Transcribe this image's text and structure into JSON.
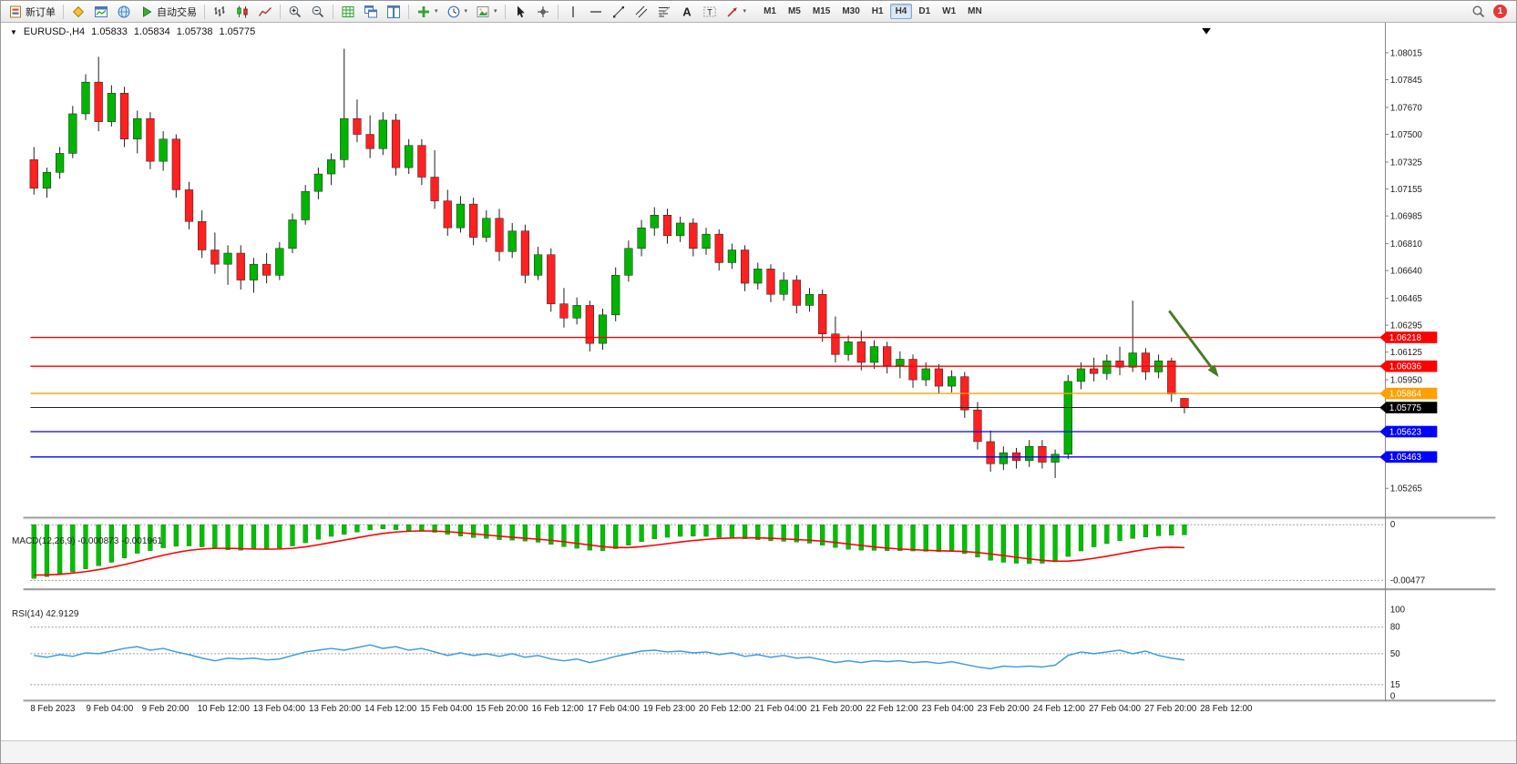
{
  "toolbar": {
    "new_order_label": "新订单",
    "autotrading_label": "自动交易",
    "timeframes": [
      "M1",
      "M5",
      "M15",
      "M30",
      "H1",
      "H4",
      "D1",
      "W1",
      "MN"
    ],
    "active_timeframe": "H4",
    "notification_badge": "1"
  },
  "chart": {
    "header": {
      "symbol_period": "EURUSD-,H4",
      "open": "1.05833",
      "high": "1.05834",
      "low": "1.05738",
      "close": "1.05775"
    },
    "price_axis_labels": [
      "1.08015",
      "1.07845",
      "1.07670",
      "1.07500",
      "1.07325",
      "1.07155",
      "1.06985",
      "1.06810",
      "1.06640",
      "1.06465",
      "1.06295",
      "1.06125",
      "1.05950",
      "1.05265"
    ],
    "hlines": [
      {
        "price": 1.06218,
        "label": "1.06218",
        "color": "#ff0000"
      },
      {
        "price": 1.06036,
        "label": "1.06036",
        "color": "#ff0000"
      },
      {
        "price": 1.05864,
        "label": "1.05864",
        "color": "#ffa000"
      },
      {
        "price": 1.05775,
        "label": "1.05775",
        "color": "#000000"
      },
      {
        "price": 1.05623,
        "label": "1.05623",
        "color": "#0000ff"
      },
      {
        "price": 1.05463,
        "label": "1.05463",
        "color": "#0000ff"
      }
    ],
    "annotation_arrow": {
      "color": "#4a7a28"
    },
    "time_axis_labels": [
      "8 Feb 2023",
      "9 Feb 04:00",
      "9 Feb 20:00",
      "10 Feb 12:00",
      "13 Feb 04:00",
      "13 Feb 20:00",
      "14 Feb 12:00",
      "15 Feb 04:00",
      "15 Feb 20:00",
      "16 Feb 12:00",
      "17 Feb 04:00",
      "19 Feb 23:00",
      "20 Feb 12:00",
      "21 Feb 04:00",
      "21 Feb 20:00",
      "22 Feb 12:00",
      "23 Feb 04:00",
      "23 Feb 20:00",
      "24 Feb 12:00",
      "27 Feb 04:00",
      "27 Feb 20:00",
      "28 Feb 12:00"
    ]
  },
  "chart_data": {
    "type": "candlestick",
    "symbol": "EURUSD-",
    "timeframe": "H4",
    "up_color": "#00b400",
    "down_color": "#ff2020",
    "candles": [
      [
        1.0734,
        1.0742,
        1.0712,
        1.0716
      ],
      [
        1.0716,
        1.0729,
        1.071,
        1.0726
      ],
      [
        1.0726,
        1.0742,
        1.0722,
        1.0738
      ],
      [
        1.0738,
        1.0768,
        1.0735,
        1.0763
      ],
      [
        1.0763,
        1.0788,
        1.0759,
        1.0783
      ],
      [
        1.0783,
        1.0799,
        1.0752,
        1.0758
      ],
      [
        1.0758,
        1.0781,
        1.0755,
        1.0776
      ],
      [
        1.0776,
        1.078,
        1.0742,
        1.0747
      ],
      [
        1.0747,
        1.0765,
        1.0738,
        1.076
      ],
      [
        1.076,
        1.0764,
        1.0728,
        1.0733
      ],
      [
        1.0733,
        1.0752,
        1.0727,
        1.0747
      ],
      [
        1.0747,
        1.075,
        1.071,
        1.0715
      ],
      [
        1.0715,
        1.072,
        1.069,
        1.0695
      ],
      [
        1.0695,
        1.0702,
        1.0672,
        1.0677
      ],
      [
        1.0677,
        1.0688,
        1.0662,
        1.0668
      ],
      [
        1.0668,
        1.068,
        1.0655,
        1.0675
      ],
      [
        1.0675,
        1.068,
        1.0652,
        1.0658
      ],
      [
        1.0658,
        1.0672,
        1.065,
        1.0668
      ],
      [
        1.0668,
        1.0675,
        1.0656,
        1.0661
      ],
      [
        1.0661,
        1.0682,
        1.0658,
        1.0678
      ],
      [
        1.0678,
        1.07,
        1.0675,
        1.0696
      ],
      [
        1.0696,
        1.0718,
        1.0693,
        1.0714
      ],
      [
        1.0714,
        1.0729,
        1.0709,
        1.0725
      ],
      [
        1.0725,
        1.0738,
        1.0718,
        1.0734
      ],
      [
        1.0734,
        1.0804,
        1.0729,
        1.076
      ],
      [
        1.076,
        1.0772,
        1.0745,
        1.075
      ],
      [
        1.075,
        1.0762,
        1.0735,
        1.0741
      ],
      [
        1.0741,
        1.0764,
        1.0737,
        1.0759
      ],
      [
        1.0759,
        1.0763,
        1.0724,
        1.0729
      ],
      [
        1.0729,
        1.0747,
        1.0725,
        1.0743
      ],
      [
        1.0743,
        1.0747,
        1.0718,
        1.0723
      ],
      [
        1.0723,
        1.074,
        1.0703,
        1.0708
      ],
      [
        1.0708,
        1.0715,
        1.0686,
        1.0691
      ],
      [
        1.0691,
        1.0711,
        1.0688,
        1.0706
      ],
      [
        1.0706,
        1.071,
        1.068,
        1.0685
      ],
      [
        1.0685,
        1.0702,
        1.0682,
        1.0697
      ],
      [
        1.0697,
        1.0703,
        1.067,
        1.0676
      ],
      [
        1.0676,
        1.0694,
        1.0672,
        1.0689
      ],
      [
        1.0689,
        1.0693,
        1.0656,
        1.0661
      ],
      [
        1.0661,
        1.0679,
        1.0658,
        1.0674
      ],
      [
        1.0674,
        1.0678,
        1.0638,
        1.0643
      ],
      [
        1.0643,
        1.0653,
        1.0628,
        1.0634
      ],
      [
        1.0634,
        1.0647,
        1.063,
        1.0642
      ],
      [
        1.0642,
        1.0645,
        1.0613,
        1.0618
      ],
      [
        1.0618,
        1.064,
        1.0614,
        1.0636
      ],
      [
        1.0636,
        1.0666,
        1.0632,
        1.0661
      ],
      [
        1.0661,
        1.0683,
        1.0657,
        1.0678
      ],
      [
        1.0678,
        1.0696,
        1.0673,
        1.0691
      ],
      [
        1.0691,
        1.0704,
        1.0686,
        1.0699
      ],
      [
        1.0699,
        1.0703,
        1.0681,
        1.0686
      ],
      [
        1.0686,
        1.0698,
        1.0682,
        1.0694
      ],
      [
        1.0694,
        1.0697,
        1.0673,
        1.0678
      ],
      [
        1.0678,
        1.0691,
        1.0674,
        1.0687
      ],
      [
        1.0687,
        1.069,
        1.0664,
        1.0669
      ],
      [
        1.0669,
        1.0681,
        1.0665,
        1.0677
      ],
      [
        1.0677,
        1.068,
        1.0651,
        1.0656
      ],
      [
        1.0656,
        1.0669,
        1.0652,
        1.0665
      ],
      [
        1.0665,
        1.0668,
        1.0644,
        1.0649
      ],
      [
        1.0649,
        1.0663,
        1.0645,
        1.0658
      ],
      [
        1.0658,
        1.0661,
        1.0637,
        1.0642
      ],
      [
        1.0642,
        1.0653,
        1.0638,
        1.0649
      ],
      [
        1.0649,
        1.0652,
        1.0619,
        1.0624
      ],
      [
        1.0624,
        1.0635,
        1.0606,
        1.0611
      ],
      [
        1.0611,
        1.0623,
        1.0607,
        1.0619
      ],
      [
        1.0619,
        1.0626,
        1.0601,
        1.0606
      ],
      [
        1.0606,
        1.062,
        1.0602,
        1.0616
      ],
      [
        1.0616,
        1.0619,
        1.0599,
        1.0604
      ],
      [
        1.0604,
        1.0613,
        1.0596,
        1.0608
      ],
      [
        1.0608,
        1.0611,
        1.059,
        1.0595
      ],
      [
        1.0595,
        1.0606,
        1.0591,
        1.0602
      ],
      [
        1.0602,
        1.0605,
        1.0586,
        1.0591
      ],
      [
        1.0591,
        1.0601,
        1.0587,
        1.0597
      ],
      [
        1.0597,
        1.06,
        1.0571,
        1.0576
      ],
      [
        1.0576,
        1.0581,
        1.0551,
        1.0556
      ],
      [
        1.0556,
        1.0563,
        1.0537,
        1.0542
      ],
      [
        1.0542,
        1.0553,
        1.0538,
        1.0549
      ],
      [
        1.0549,
        1.0552,
        1.0539,
        1.0544
      ],
      [
        1.0544,
        1.0557,
        1.054,
        1.0553
      ],
      [
        1.0553,
        1.0557,
        1.0539,
        1.0543
      ],
      [
        1.0543,
        1.0551,
        1.0533,
        1.0548
      ],
      [
        1.0548,
        1.0598,
        1.0545,
        1.0594
      ],
      [
        1.0594,
        1.0606,
        1.0589,
        1.0602
      ],
      [
        1.0602,
        1.0609,
        1.0594,
        1.0599
      ],
      [
        1.0599,
        1.0611,
        1.0595,
        1.0607
      ],
      [
        1.0607,
        1.0616,
        1.0598,
        1.0603
      ],
      [
        1.0603,
        1.0645,
        1.06,
        1.0612
      ],
      [
        1.0612,
        1.0615,
        1.0595,
        1.06
      ],
      [
        1.06,
        1.0611,
        1.0596,
        1.0607
      ],
      [
        1.0607,
        1.0609,
        1.0581,
        1.0586
      ],
      [
        1.05833,
        1.05834,
        1.05738,
        1.05775
      ]
    ],
    "indicators": {
      "macd": {
        "name": "MACD(12,26,9)",
        "values_text": "-0.000873 -0.001961",
        "axis_labels": [
          "0",
          "-0.00477"
        ],
        "histogram_color": "#00c000",
        "signal_color": "#ff0000",
        "histogram": [
          -0.0046,
          -0.00445,
          -0.00428,
          -0.00405,
          -0.00378,
          -0.00352,
          -0.00322,
          -0.00285,
          -0.00245,
          -0.00222,
          -0.00198,
          -0.00185,
          -0.00182,
          -0.0019,
          -0.00205,
          -0.00215,
          -0.00218,
          -0.00212,
          -0.00208,
          -0.002,
          -0.00182,
          -0.00155,
          -0.00125,
          -0.001,
          -0.00082,
          -0.00063,
          -0.00045,
          -0.00035,
          -0.00042,
          -0.00052,
          -0.00055,
          -0.00065,
          -0.00082,
          -0.00098,
          -0.0011,
          -0.00118,
          -0.00128,
          -0.00132,
          -0.0014,
          -0.0015,
          -0.00168,
          -0.00188,
          -0.00202,
          -0.00218,
          -0.00222,
          -0.00205,
          -0.00175,
          -0.00145,
          -0.00122,
          -0.00108,
          -0.001,
          -0.00098,
          -0.001,
          -0.00108,
          -0.00112,
          -0.0012,
          -0.00128,
          -0.00138,
          -0.00142,
          -0.00148,
          -0.00158,
          -0.00175,
          -0.00195,
          -0.0021,
          -0.00218,
          -0.0022,
          -0.00222,
          -0.00222,
          -0.00225,
          -0.00228,
          -0.0023,
          -0.00228,
          -0.00248,
          -0.00278,
          -0.00305,
          -0.00322,
          -0.0033,
          -0.00332,
          -0.0033,
          -0.00318,
          -0.00272,
          -0.00225,
          -0.0019,
          -0.00162,
          -0.00138,
          -0.00118,
          -0.00105,
          -0.00095,
          -0.0009,
          -0.000873
        ],
        "signal": [
          -0.00432,
          -0.0043,
          -0.00425,
          -0.00415,
          -0.00402,
          -0.00385,
          -0.00365,
          -0.00342,
          -0.00315,
          -0.00288,
          -0.00262,
          -0.00238,
          -0.0022,
          -0.00208,
          -0.00202,
          -0.00202,
          -0.00205,
          -0.00208,
          -0.0021,
          -0.00208,
          -0.00202,
          -0.0019,
          -0.00172,
          -0.00152,
          -0.00132,
          -0.00112,
          -0.00092,
          -0.00075,
          -0.00063,
          -0.00056,
          -0.00053,
          -0.00055,
          -0.0006,
          -0.00068,
          -0.00078,
          -0.00088,
          -0.00098,
          -0.00108,
          -0.00116,
          -0.00124,
          -0.00134,
          -0.00146,
          -0.0016,
          -0.00174,
          -0.00188,
          -0.00196,
          -0.00196,
          -0.00188,
          -0.00176,
          -0.00162,
          -0.00148,
          -0.00136,
          -0.00126,
          -0.00118,
          -0.00114,
          -0.00112,
          -0.00113,
          -0.00116,
          -0.00121,
          -0.00127,
          -0.00133,
          -0.00141,
          -0.00152,
          -0.00165,
          -0.00178,
          -0.0019,
          -0.002,
          -0.00208,
          -0.00214,
          -0.00219,
          -0.00223,
          -0.00226,
          -0.0023,
          -0.00238,
          -0.0025,
          -0.00264,
          -0.00279,
          -0.00293,
          -0.00305,
          -0.00313,
          -0.00312,
          -0.00303,
          -0.00288,
          -0.0027,
          -0.0025,
          -0.0023,
          -0.00211,
          -0.00196,
          -0.00193,
          -0.001961
        ]
      },
      "rsi": {
        "name": "RSI(14)",
        "value_text": "42.9129",
        "axis_labels": [
          "100",
          "80",
          "50",
          "15",
          "0"
        ],
        "levels": [
          80,
          50,
          15
        ],
        "line_color": "#3c9be0",
        "values": [
          48,
          46,
          49,
          47,
          51,
          50,
          53,
          56,
          58,
          54,
          56,
          52,
          49,
          45,
          42,
          45,
          44,
          45,
          43,
          44,
          48,
          52,
          54,
          56,
          54,
          57,
          60,
          56,
          58,
          54,
          56,
          52,
          48,
          51,
          48,
          50,
          47,
          50,
          46,
          48,
          44,
          42,
          44,
          40,
          43,
          47,
          50,
          53,
          54,
          52,
          53,
          51,
          52,
          49,
          51,
          47,
          49,
          46,
          48,
          45,
          46,
          43,
          40,
          42,
          40,
          42,
          41,
          42,
          40,
          41,
          39,
          41,
          38,
          35,
          33,
          36,
          35,
          36,
          35,
          37,
          48,
          52,
          50,
          52,
          54,
          50,
          53,
          48,
          45,
          42.91
        ]
      }
    }
  }
}
